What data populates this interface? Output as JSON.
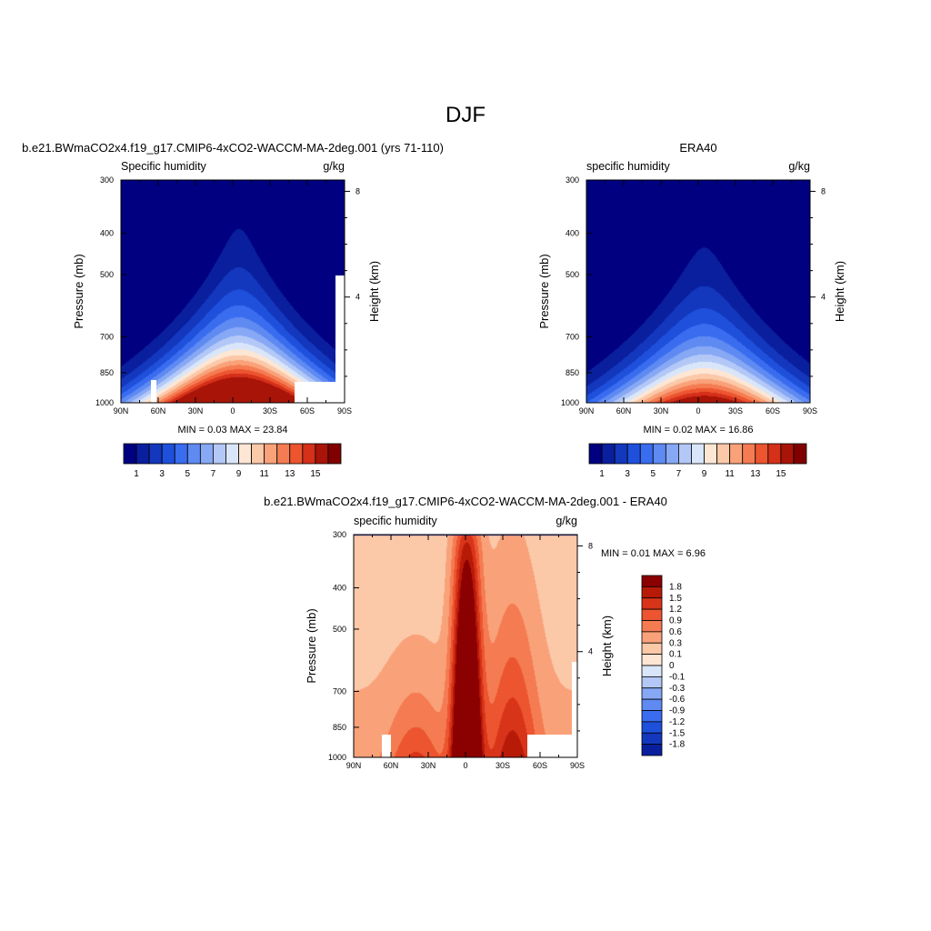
{
  "figure": {
    "title": "DJF"
  },
  "panels": [
    {
      "id": "model",
      "header": "b.e21.BWmaCO2x4.f19_g17.CMIP6-4xCO2-WACCM-MA-2deg.001 (yrs 71-110)",
      "left_label": "Specific humidity",
      "right_label": "g/kg",
      "ylabel": "Pressure (mb)",
      "ylabel_right": "Height (km)",
      "stats": "MIN =  0.03  MAX =  23.84"
    },
    {
      "id": "obs",
      "header": "ERA40",
      "left_label": "specific humidity",
      "right_label": "g/kg",
      "ylabel": "Pressure (mb)",
      "ylabel_right": "Height (km)",
      "stats": "MIN =  0.02  MAX =  16.86"
    },
    {
      "id": "diff",
      "header": "b.e21.BWmaCO2x4.f19_g17.CMIP6-4xCO2-WACCM-MA-2deg.001 - ERA40",
      "left_label": "specific humidity",
      "right_label": "g/kg",
      "ylabel": "Pressure (mb)",
      "ylabel_right": "Height (km)",
      "stats": "MIN =  0.01  MAX =  6.96"
    }
  ],
  "chart_data": [
    {
      "type": "heatmap",
      "panel": "model",
      "variable": "Specific humidity",
      "units": "g/kg",
      "x_ticklabels": [
        "90N",
        "60N",
        "30N",
        "0",
        "30S",
        "60S",
        "90S"
      ],
      "x_values": [
        90,
        60,
        30,
        0,
        -30,
        -60,
        -90
      ],
      "xlim": [
        90,
        -90
      ],
      "y_ticklabels": [
        "300",
        "400",
        "500",
        "700",
        "850",
        "1000"
      ],
      "y_values": [
        300,
        400,
        500,
        700,
        850,
        1000
      ],
      "ylim": [
        1000,
        300
      ],
      "y_scale": "log",
      "y2_ticklabels": [
        "4",
        "8"
      ],
      "y2_values": [
        4,
        8
      ],
      "levels": [
        1,
        2,
        3,
        4,
        5,
        6,
        7,
        8,
        9,
        10,
        11,
        12,
        13,
        14,
        15
      ],
      "min": 0.03,
      "max": 23.84,
      "peak_lat": -5,
      "peak_value": 23.84
    },
    {
      "type": "heatmap",
      "panel": "obs",
      "variable": "specific humidity",
      "units": "g/kg",
      "x_ticklabels": [
        "90N",
        "60N",
        "30N",
        "0",
        "30S",
        "60S",
        "90S"
      ],
      "x_values": [
        90,
        60,
        30,
        0,
        -30,
        -60,
        -90
      ],
      "xlim": [
        90,
        -90
      ],
      "y_ticklabels": [
        "300",
        "400",
        "500",
        "700",
        "850",
        "1000"
      ],
      "y_values": [
        300,
        400,
        500,
        700,
        850,
        1000
      ],
      "ylim": [
        1000,
        300
      ],
      "y_scale": "log",
      "y2_ticklabels": [
        "4",
        "8"
      ],
      "y2_values": [
        4,
        8
      ],
      "levels": [
        1,
        2,
        3,
        4,
        5,
        6,
        7,
        8,
        9,
        10,
        11,
        12,
        13,
        14,
        15
      ],
      "min": 0.02,
      "max": 16.86,
      "peak_lat": -5,
      "peak_value": 16.86
    },
    {
      "type": "heatmap",
      "panel": "diff",
      "variable": "specific humidity",
      "units": "g/kg",
      "x_ticklabels": [
        "90N",
        "60N",
        "30N",
        "0",
        "30S",
        "60S",
        "90S"
      ],
      "x_values": [
        90,
        60,
        30,
        0,
        -30,
        -60,
        -90
      ],
      "xlim": [
        90,
        -90
      ],
      "y_ticklabels": [
        "300",
        "400",
        "500",
        "700",
        "850",
        "1000"
      ],
      "y_values": [
        300,
        400,
        500,
        700,
        850,
        1000
      ],
      "ylim": [
        1000,
        300
      ],
      "y_scale": "log",
      "y2_ticklabels": [
        "4",
        "8"
      ],
      "y2_values": [
        4,
        8
      ],
      "levels": [
        -1.8,
        -1.5,
        -1.2,
        -0.9,
        -0.6,
        -0.3,
        -0.1,
        0,
        0.1,
        0.3,
        0.6,
        0.9,
        1.2,
        1.5,
        1.8
      ],
      "min": 0.01,
      "max": 6.96
    }
  ],
  "colorbars": {
    "main": {
      "colors": [
        "#000080",
        "#0a1f9e",
        "#1337bd",
        "#1e50dc",
        "#3a6cf0",
        "#5e8af2",
        "#86a8f5",
        "#b3c8f7",
        "#d9e6fa",
        "#fde6d4",
        "#fbc8a8",
        "#f9a27a",
        "#f57c52",
        "#ec5530",
        "#d4301a",
        "#a81408",
        "#800000"
      ],
      "labels": [
        "1",
        "3",
        "5",
        "7",
        "9",
        "11",
        "13",
        "15"
      ]
    },
    "diff": {
      "colors": [
        "#8b0000",
        "#b81a08",
        "#d8341a",
        "#ec5530",
        "#f57c52",
        "#f9a27a",
        "#fbc8a8",
        "#fde6d4",
        "#d9e6fa",
        "#b3c8f7",
        "#86a8f5",
        "#5e8af2",
        "#3a6cf0",
        "#1e50dc",
        "#1337bd",
        "#0a1f9e"
      ],
      "labels": [
        "1.8",
        "1.5",
        "1.2",
        "0.9",
        "0.6",
        "0.3",
        "0.1",
        "0",
        "-0.1",
        "-0.3",
        "-0.6",
        "-0.9",
        "-1.2",
        "-1.5",
        "-1.8"
      ]
    }
  }
}
